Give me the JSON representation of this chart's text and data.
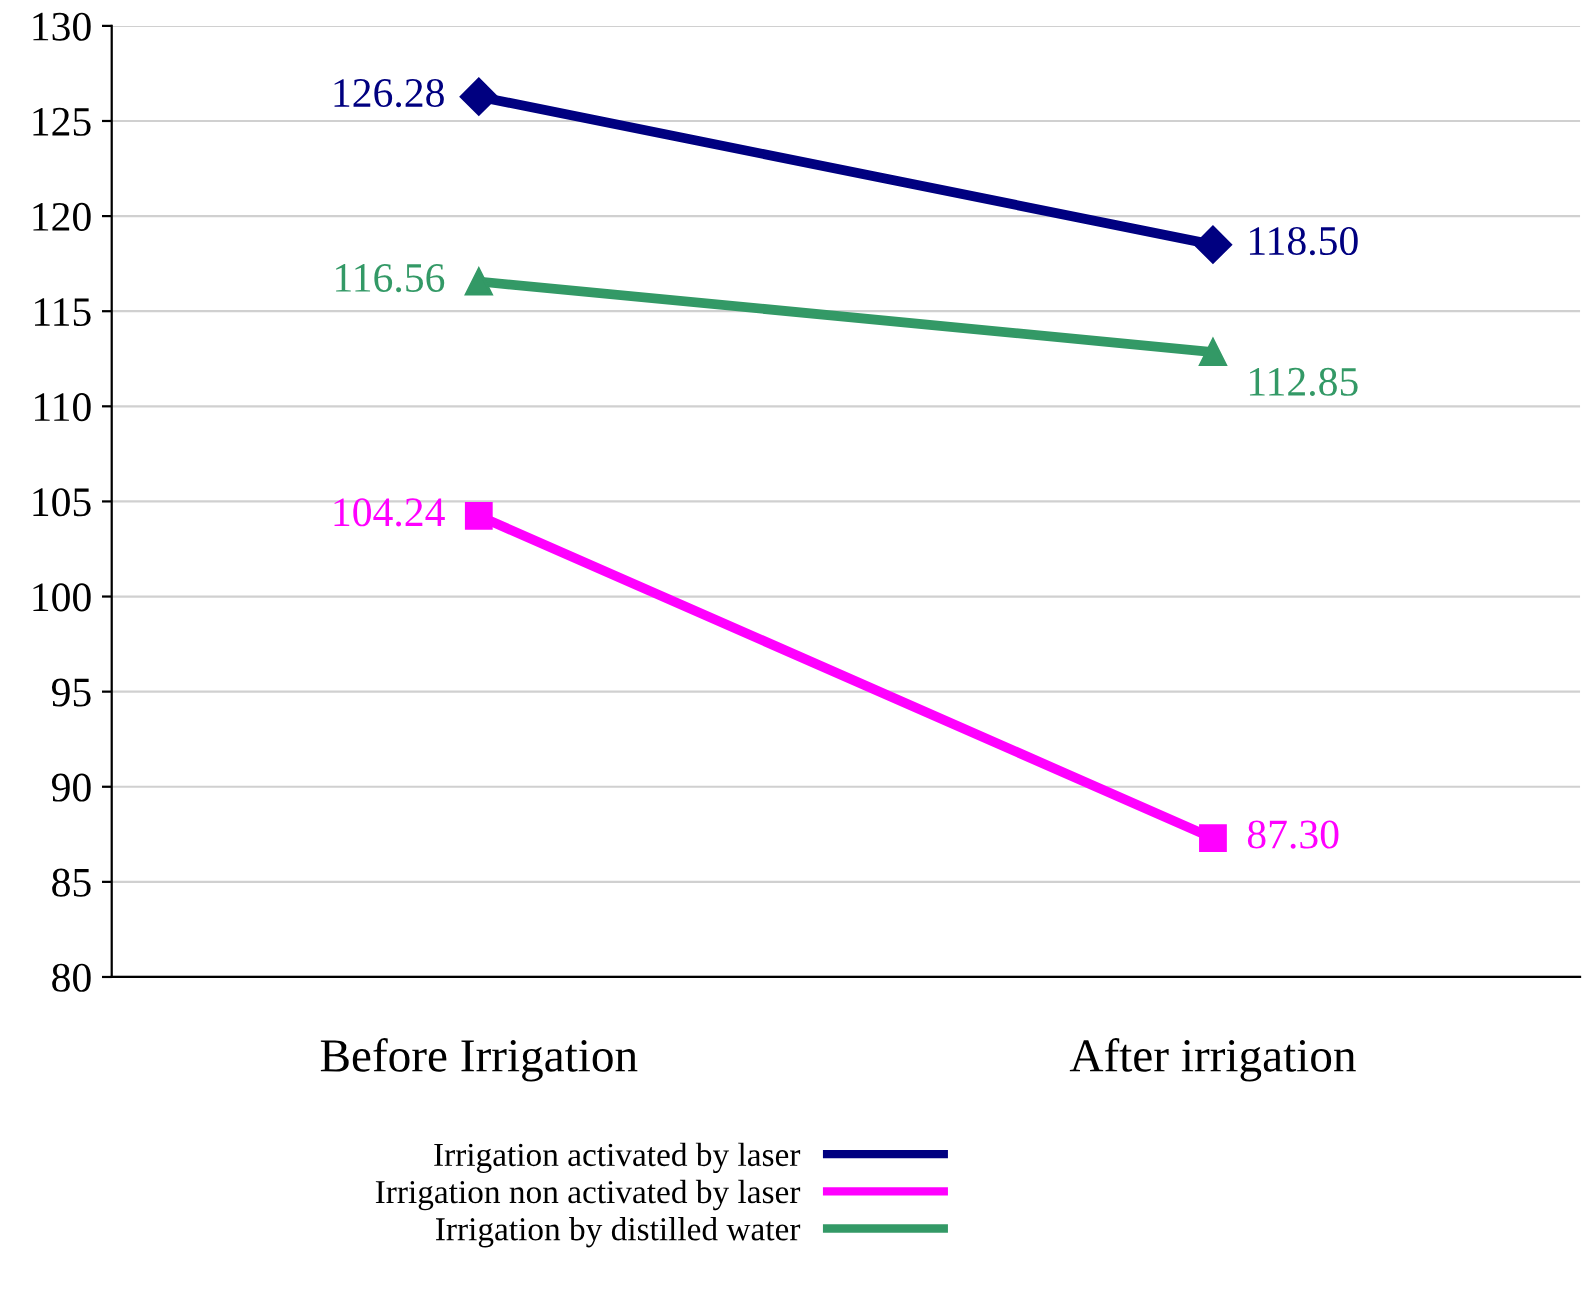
{
  "chart_data": {
    "type": "line",
    "categories": [
      "Before Irrigation",
      "After irrigation"
    ],
    "series": [
      {
        "name": "Irrigation activated by laser",
        "color": "#000080",
        "marker": "diamond",
        "values": [
          126.28,
          118.5
        ],
        "value_labels": [
          "126.28",
          "118.50"
        ]
      },
      {
        "name": "Irrigation non activated by laser",
        "color": "#ff00ff",
        "marker": "square",
        "values": [
          104.24,
          87.3
        ],
        "value_labels": [
          "104.24",
          "87.30"
        ]
      },
      {
        "name": "Irrigation by distilled water",
        "color": "#339966",
        "marker": "triangle",
        "values": [
          116.56,
          112.85
        ],
        "value_labels": [
          "116.56",
          "112.85"
        ]
      }
    ],
    "ylim": [
      80,
      130
    ],
    "yticks": [
      80,
      85,
      90,
      95,
      100,
      105,
      110,
      115,
      120,
      125,
      130
    ],
    "grid": "y",
    "legend": "bottom",
    "line_style": "solid"
  }
}
